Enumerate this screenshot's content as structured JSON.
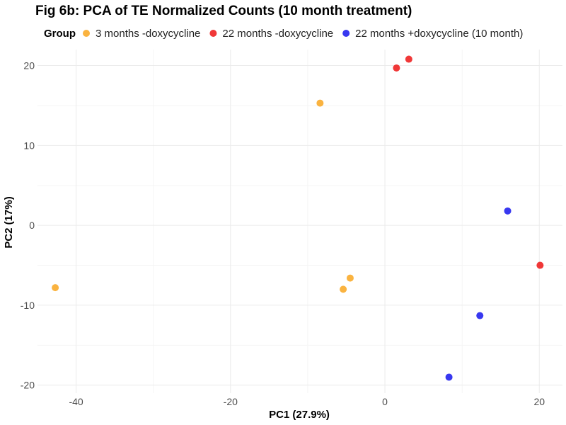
{
  "chart_data": {
    "type": "scatter",
    "title": "Fig 6b: PCA of TE Normalized Counts (10 month treatment)",
    "xlabel": "PC1 (27.9%)",
    "ylabel": "PC2 (17%)",
    "xlim": [
      -45,
      23
    ],
    "ylim": [
      -21,
      22
    ],
    "xticks": [
      -40,
      -20,
      0,
      20
    ],
    "yticks": [
      -20,
      -10,
      0,
      10,
      20
    ],
    "xtick_labels": [
      "-40",
      "-20",
      "0",
      "20"
    ],
    "ytick_labels": [
      "-20",
      "-10",
      "0",
      "10",
      "20"
    ],
    "grid": true,
    "legend": {
      "title": "Group",
      "position": "top"
    },
    "series": [
      {
        "name": "3 months -doxycycline",
        "color": "#F9A825",
        "points": [
          {
            "x": -42.7,
            "y": -7.8
          },
          {
            "x": -8.4,
            "y": 15.3
          },
          {
            "x": -4.5,
            "y": -6.6
          },
          {
            "x": -5.4,
            "y": -8.0
          }
        ]
      },
      {
        "name": "22 months -doxycycline",
        "color": "#EE1C1C",
        "points": [
          {
            "x": 1.5,
            "y": 19.7
          },
          {
            "x": 3.1,
            "y": 20.8
          },
          {
            "x": 20.1,
            "y": -5.0
          }
        ]
      },
      {
        "name": "22 months +doxycycline (10 month)",
        "color": "#1C1CEE",
        "points": [
          {
            "x": 15.9,
            "y": 1.8
          },
          {
            "x": 12.3,
            "y": -11.3
          },
          {
            "x": 8.3,
            "y": -19.0
          }
        ]
      }
    ]
  }
}
